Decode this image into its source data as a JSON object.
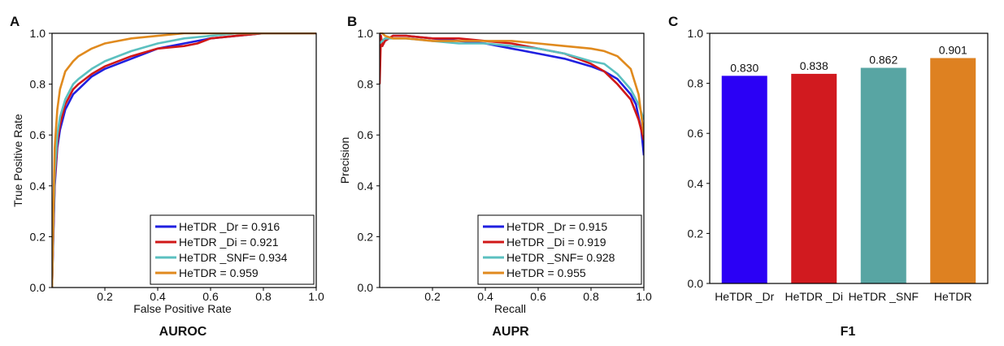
{
  "chart_data": [
    {
      "panel": "A",
      "type": "line",
      "title": "AUROC",
      "xlabel": "False Positive Rate",
      "ylabel": "True Positive Rate",
      "xlim": [
        0,
        1.0
      ],
      "ylim": [
        0,
        1.0
      ],
      "xticks": [
        "0.2",
        "0.4",
        "0.6",
        "0.8",
        "1.0"
      ],
      "xtick_values": [
        0.2,
        0.4,
        0.6,
        0.8,
        1.0
      ],
      "yticks": [
        "0.0",
        "0.2",
        "0.4",
        "0.6",
        "0.8",
        "1.0"
      ],
      "ytick_values": [
        0.0,
        0.2,
        0.4,
        0.6,
        0.8,
        1.0
      ],
      "legend_position": "bottom-right",
      "series": [
        {
          "name": "HeTDR _Dr = 0.916",
          "color": "#2020e0",
          "x": [
            0,
            0.005,
            0.01,
            0.02,
            0.03,
            0.05,
            0.08,
            0.1,
            0.15,
            0.2,
            0.3,
            0.4,
            0.5,
            0.6,
            0.7,
            0.8,
            1.0
          ],
          "y": [
            0,
            0.2,
            0.4,
            0.55,
            0.62,
            0.7,
            0.76,
            0.78,
            0.83,
            0.86,
            0.9,
            0.94,
            0.96,
            0.98,
            0.99,
            1.0,
            1.0
          ]
        },
        {
          "name": "HeTDR _Di = 0.921",
          "color": "#d01818",
          "x": [
            0,
            0.005,
            0.01,
            0.02,
            0.03,
            0.05,
            0.08,
            0.1,
            0.15,
            0.2,
            0.3,
            0.4,
            0.5,
            0.55,
            0.6,
            0.7,
            0.8,
            1.0
          ],
          "y": [
            0,
            0.22,
            0.42,
            0.57,
            0.64,
            0.72,
            0.78,
            0.8,
            0.84,
            0.87,
            0.91,
            0.94,
            0.95,
            0.96,
            0.98,
            0.99,
            1.0,
            1.0
          ]
        },
        {
          "name": "HeTDR _SNF= 0.934",
          "color": "#5bc0c0",
          "x": [
            0,
            0.005,
            0.01,
            0.02,
            0.03,
            0.05,
            0.08,
            0.1,
            0.15,
            0.2,
            0.3,
            0.4,
            0.5,
            0.6,
            0.7,
            0.8,
            1.0
          ],
          "y": [
            0,
            0.25,
            0.45,
            0.6,
            0.67,
            0.74,
            0.8,
            0.82,
            0.86,
            0.89,
            0.93,
            0.96,
            0.98,
            0.99,
            1.0,
            1.0,
            1.0
          ]
        },
        {
          "name": "HeTDR = 0.959",
          "color": "#e08a1e",
          "x": [
            0,
            0.005,
            0.01,
            0.02,
            0.03,
            0.05,
            0.08,
            0.1,
            0.15,
            0.2,
            0.25,
            0.3,
            0.4,
            0.5,
            0.6,
            0.7,
            1.0
          ],
          "y": [
            0,
            0.3,
            0.55,
            0.7,
            0.78,
            0.85,
            0.89,
            0.91,
            0.94,
            0.96,
            0.97,
            0.98,
            0.99,
            1.0,
            1.0,
            1.0,
            1.0
          ]
        }
      ]
    },
    {
      "panel": "B",
      "type": "line",
      "title": "AUPR",
      "xlabel": "Recall",
      "ylabel": "Precision",
      "xlim": [
        0,
        1.0
      ],
      "ylim": [
        0,
        1.0
      ],
      "xticks": [
        "0.2",
        "0.4",
        "0.6",
        "0.8",
        "1.0"
      ],
      "xtick_values": [
        0.2,
        0.4,
        0.6,
        0.8,
        1.0
      ],
      "yticks": [
        "0.0",
        "0.2",
        "0.4",
        "0.6",
        "0.8",
        "1.0"
      ],
      "ytick_values": [
        0.0,
        0.2,
        0.4,
        0.6,
        0.8,
        1.0
      ],
      "legend_position": "bottom-right",
      "series": [
        {
          "name": "HeTDR _Dr = 0.915",
          "color": "#2020e0",
          "x": [
            0,
            0.01,
            0.02,
            0.05,
            0.1,
            0.2,
            0.3,
            0.4,
            0.5,
            0.6,
            0.7,
            0.8,
            0.85,
            0.9,
            0.95,
            0.97,
            0.99,
            1.0
          ],
          "y": [
            1.0,
            0.95,
            0.97,
            0.99,
            0.99,
            0.98,
            0.97,
            0.96,
            0.94,
            0.92,
            0.9,
            0.87,
            0.85,
            0.82,
            0.76,
            0.72,
            0.62,
            0.52
          ]
        },
        {
          "name": "HeTDR _Di = 0.919",
          "color": "#d01818",
          "x": [
            0,
            0.005,
            0.01,
            0.02,
            0.05,
            0.1,
            0.2,
            0.3,
            0.4,
            0.5,
            0.6,
            0.7,
            0.8,
            0.85,
            0.9,
            0.95,
            0.98,
            1.0
          ],
          "y": [
            0.8,
            0.99,
            0.95,
            0.97,
            0.99,
            0.99,
            0.98,
            0.98,
            0.97,
            0.96,
            0.94,
            0.92,
            0.88,
            0.85,
            0.8,
            0.74,
            0.66,
            0.58
          ]
        },
        {
          "name": "HeTDR _SNF= 0.928",
          "color": "#5bc0c0",
          "x": [
            0,
            0.01,
            0.02,
            0.05,
            0.1,
            0.2,
            0.3,
            0.4,
            0.5,
            0.6,
            0.7,
            0.8,
            0.85,
            0.9,
            0.95,
            0.98,
            1.0
          ],
          "y": [
            0.96,
            0.97,
            0.98,
            0.98,
            0.98,
            0.97,
            0.96,
            0.96,
            0.95,
            0.94,
            0.92,
            0.89,
            0.88,
            0.84,
            0.78,
            0.72,
            0.66
          ]
        },
        {
          "name": "HeTDR = 0.955",
          "color": "#e08a1e",
          "x": [
            0,
            0.01,
            0.02,
            0.05,
            0.1,
            0.2,
            0.3,
            0.4,
            0.5,
            0.6,
            0.7,
            0.8,
            0.85,
            0.9,
            0.95,
            0.98,
            1.0
          ],
          "y": [
            1.0,
            1.0,
            0.99,
            0.98,
            0.98,
            0.97,
            0.97,
            0.97,
            0.97,
            0.96,
            0.95,
            0.94,
            0.93,
            0.91,
            0.86,
            0.76,
            0.6
          ]
        }
      ]
    },
    {
      "panel": "C",
      "type": "bar",
      "title": "F1",
      "xlabel": "",
      "ylabel": "",
      "ylim": [
        0,
        1.0
      ],
      "yticks": [
        "0.0",
        "0.2",
        "0.4",
        "0.6",
        "0.8",
        "1.0"
      ],
      "ytick_values": [
        0.0,
        0.2,
        0.4,
        0.6,
        0.8,
        1.0
      ],
      "categories": [
        "HeTDR _Dr",
        "HeTDR _Di",
        "HeTDR _SNF",
        "HeTDR"
      ],
      "values": [
        0.83,
        0.838,
        0.862,
        0.901
      ],
      "value_labels": [
        "0.830",
        "0.838",
        "0.862",
        "0.901"
      ],
      "colors": [
        "#2b00f5",
        "#d11a1f",
        "#58a5a3",
        "#de8121"
      ]
    }
  ]
}
